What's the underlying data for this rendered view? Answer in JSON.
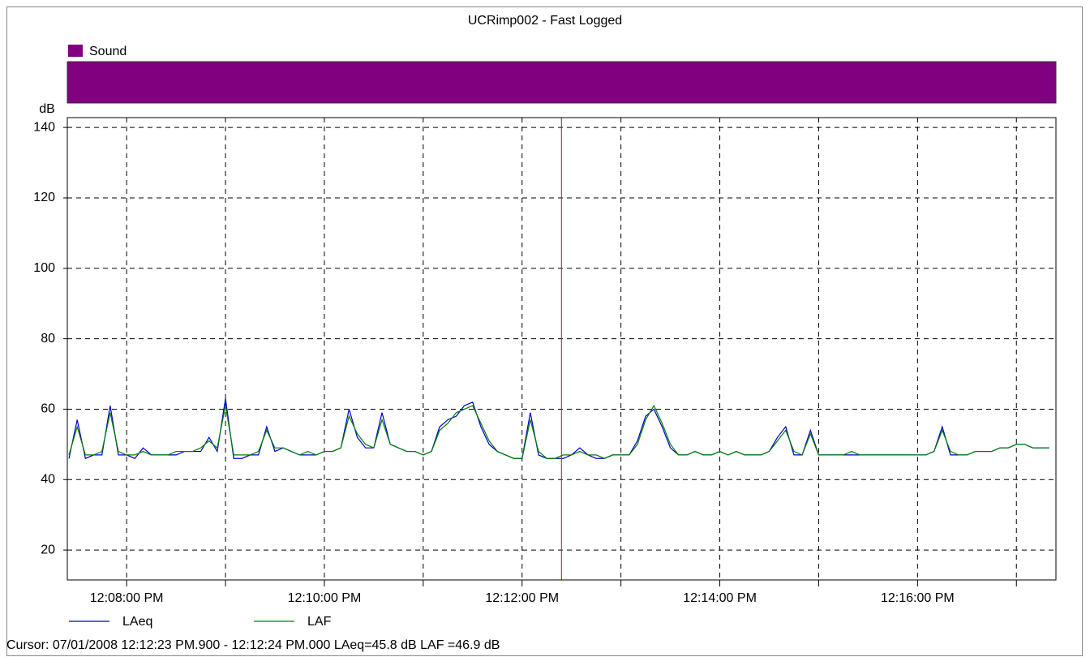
{
  "chart_data": {
    "type": "line",
    "title": "UCRimp002 - Fast Logged",
    "y_label": "dB",
    "event_legend": {
      "name": "Sound",
      "color": "#800080"
    },
    "x": [
      "12:07:25",
      "12:07:30",
      "12:07:35",
      "12:07:40",
      "12:07:45",
      "12:07:50",
      "12:07:55",
      "12:08:00",
      "12:08:05",
      "12:08:10",
      "12:08:15",
      "12:08:20",
      "12:08:25",
      "12:08:30",
      "12:08:35",
      "12:08:40",
      "12:08:45",
      "12:08:50",
      "12:08:55",
      "12:09:00",
      "12:09:05",
      "12:09:10",
      "12:09:15",
      "12:09:20",
      "12:09:25",
      "12:09:30",
      "12:09:35",
      "12:09:40",
      "12:09:45",
      "12:09:50",
      "12:09:55",
      "12:10:00",
      "12:10:05",
      "12:10:10",
      "12:10:15",
      "12:10:20",
      "12:10:25",
      "12:10:30",
      "12:10:35",
      "12:10:40",
      "12:10:45",
      "12:10:50",
      "12:10:55",
      "12:11:00",
      "12:11:05",
      "12:11:10",
      "12:11:15",
      "12:11:20",
      "12:11:25",
      "12:11:30",
      "12:11:35",
      "12:11:40",
      "12:11:45",
      "12:11:50",
      "12:11:55",
      "12:12:00",
      "12:12:05",
      "12:12:10",
      "12:12:15",
      "12:12:20",
      "12:12:25",
      "12:12:30",
      "12:12:35",
      "12:12:40",
      "12:12:45",
      "12:12:50",
      "12:12:55",
      "12:13:00",
      "12:13:05",
      "12:13:10",
      "12:13:15",
      "12:13:20",
      "12:13:25",
      "12:13:30",
      "12:13:35",
      "12:13:40",
      "12:13:45",
      "12:13:50",
      "12:13:55",
      "12:14:00",
      "12:14:05",
      "12:14:10",
      "12:14:15",
      "12:14:20",
      "12:14:25",
      "12:14:30",
      "12:14:35",
      "12:14:40",
      "12:14:45",
      "12:14:50",
      "12:14:55",
      "12:15:00",
      "12:15:05",
      "12:15:10",
      "12:15:15",
      "12:15:20",
      "12:15:25",
      "12:15:30",
      "12:15:35",
      "12:15:40",
      "12:15:45",
      "12:15:50",
      "12:15:55",
      "12:16:00",
      "12:16:05",
      "12:16:10",
      "12:16:15",
      "12:16:20",
      "12:16:25",
      "12:16:30",
      "12:16:35",
      "12:16:40",
      "12:16:45",
      "12:16:50",
      "12:16:55",
      "12:17:00",
      "12:17:05",
      "12:17:10",
      "12:17:15",
      "12:17:20"
    ],
    "series": [
      {
        "name": "LAeq",
        "color": "#0000cc",
        "values": [
          46,
          57,
          46,
          47,
          47,
          61,
          47,
          47,
          46,
          49,
          47,
          47,
          47,
          47,
          48,
          48,
          48,
          52,
          48,
          63,
          46,
          46,
          47,
          47,
          55,
          48,
          49,
          48,
          47,
          47,
          47,
          48,
          48,
          49,
          60,
          52,
          49,
          49,
          59,
          50,
          49,
          48,
          48,
          47,
          48,
          55,
          57,
          58,
          61,
          62,
          55,
          50,
          48,
          47,
          46,
          46,
          59,
          47,
          46,
          46,
          46,
          47,
          49,
          47,
          46,
          46,
          47,
          47,
          47,
          51,
          58,
          60,
          55,
          49,
          47,
          47,
          48,
          47,
          47,
          48,
          47,
          48,
          47,
          47,
          47,
          48,
          52,
          55,
          47,
          47,
          54,
          47,
          47,
          47,
          47,
          47,
          47,
          47,
          47,
          47,
          47,
          47,
          47,
          47,
          47,
          48,
          55,
          47,
          47,
          47,
          48,
          48,
          48,
          49,
          49,
          50,
          50,
          49,
          49,
          49
        ]
      },
      {
        "name": "LAF",
        "color": "#008000",
        "values": [
          47,
          55,
          47,
          47,
          48,
          59,
          48,
          47,
          47,
          48,
          47,
          47,
          47,
          48,
          48,
          48,
          49,
          51,
          49,
          61,
          47,
          47,
          47,
          48,
          54,
          49,
          49,
          48,
          47,
          48,
          47,
          48,
          48,
          49,
          58,
          53,
          50,
          49,
          57,
          50,
          49,
          48,
          48,
          47,
          48,
          54,
          56,
          59,
          60,
          61,
          56,
          51,
          48,
          47,
          46,
          46,
          57,
          48,
          46,
          46,
          47,
          47,
          48,
          47,
          47,
          46,
          47,
          47,
          47,
          50,
          57,
          61,
          56,
          50,
          47,
          47,
          48,
          47,
          47,
          48,
          47,
          48,
          47,
          47,
          47,
          48,
          51,
          54,
          48,
          47,
          53,
          47,
          47,
          47,
          47,
          48,
          47,
          47,
          47,
          47,
          47,
          47,
          47,
          47,
          47,
          48,
          54,
          48,
          47,
          47,
          48,
          48,
          48,
          49,
          49,
          50,
          50,
          49,
          49,
          49
        ]
      }
    ],
    "xlim": [
      "12:07:24",
      "12:17:24"
    ],
    "xticks": [
      {
        "value": "12:08:00",
        "label": "12:08:00 PM"
      },
      {
        "value": "12:10:00",
        "label": "12:10:00 PM"
      },
      {
        "value": "12:12:00",
        "label": "12:12:00 PM"
      },
      {
        "value": "12:14:00",
        "label": "12:14:00 PM"
      },
      {
        "value": "12:16:00",
        "label": "12:16:00 PM"
      }
    ],
    "xminorticks": [
      "12:09:00",
      "12:11:00",
      "12:13:00",
      "12:15:00",
      "12:17:00"
    ],
    "ylim": [
      11.5,
      142.8
    ],
    "yticks": [
      20,
      40,
      60,
      80,
      100,
      120,
      140
    ],
    "grid": true,
    "cursor": {
      "x": "12:12:23.9",
      "color": "#ff0000",
      "readout": "Cursor: 07/01/2008 12:12:23 PM.900 - 12:12:24 PM.000  LAeq=45.8 dB  LAF =46.9 dB"
    }
  }
}
